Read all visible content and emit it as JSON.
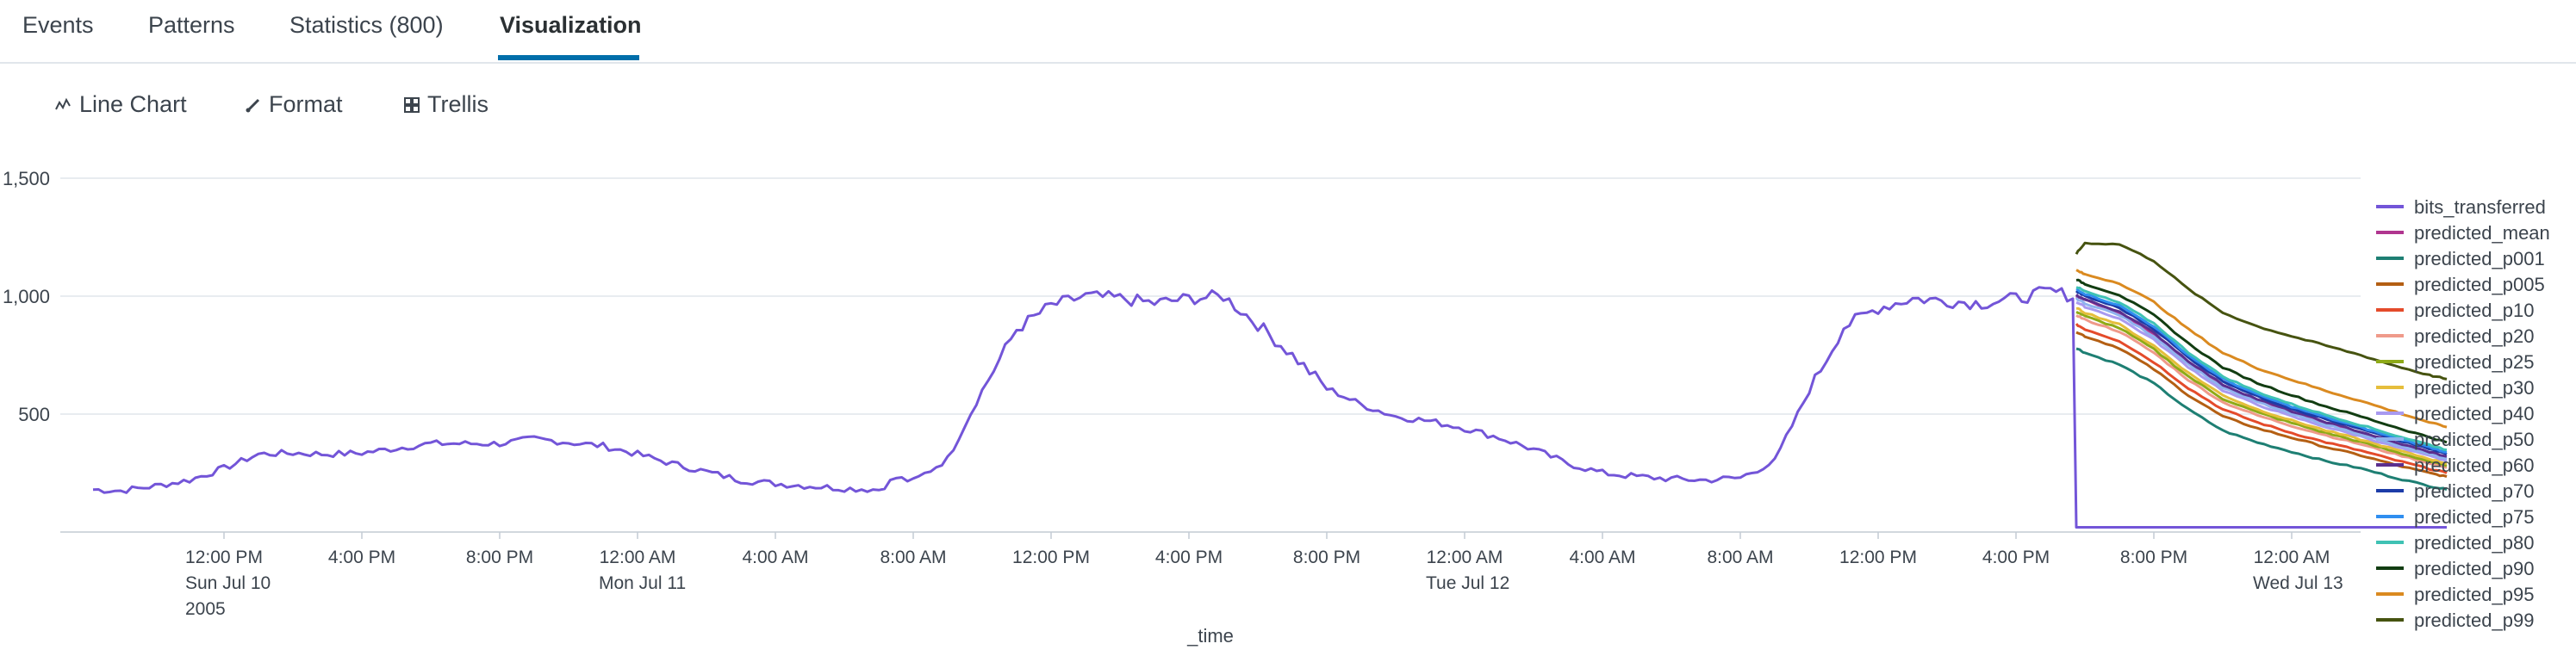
{
  "tabs": [
    {
      "label": "Events"
    },
    {
      "label": "Patterns"
    },
    {
      "label": "Statistics (800)"
    },
    {
      "label": "Visualization"
    }
  ],
  "toolbar": {
    "line_chart_label": "Line Chart",
    "format_label": "Format",
    "trellis_label": "Trellis"
  },
  "colors": {
    "active_tab": "#006eaa",
    "bits_transferred": "#7355d8",
    "predicted_mean": "#b0358f",
    "predicted_p001": "#1e7f73",
    "predicted_p005": "#b45f13",
    "predicted_p10": "#e44b2b",
    "predicted_p20": "#ef9a8a",
    "predicted_p25": "#8eaa17",
    "predicted_p30": "#e6be3c",
    "predicted_p40": "#a89af0",
    "predicted_p50": "#8fb3ee",
    "predicted_p60": "#5b2f8e",
    "predicted_p70": "#1c3ca8",
    "predicted_p75": "#2f8ef0",
    "predicted_p80": "#3fc2b4",
    "predicted_p90": "#123d12",
    "predicted_p95": "#da8a20",
    "predicted_p99": "#465310"
  },
  "chart_data": {
    "type": "line",
    "xlabel": "_time",
    "ylabel": "",
    "ylim": [
      0,
      1500
    ],
    "yticks": [
      "1,500",
      "1,000",
      "500"
    ],
    "xticks": [
      {
        "label": "12:00 PM",
        "sub": [
          "Sun Jul 10",
          "2005"
        ]
      },
      {
        "label": "4:00 PM",
        "sub": []
      },
      {
        "label": "8:00 PM",
        "sub": []
      },
      {
        "label": "12:00 AM",
        "sub": [
          "Mon Jul 11"
        ]
      },
      {
        "label": "4:00 AM",
        "sub": []
      },
      {
        "label": "8:00 AM",
        "sub": []
      },
      {
        "label": "12:00 PM",
        "sub": []
      },
      {
        "label": "4:00 PM",
        "sub": []
      },
      {
        "label": "8:00 PM",
        "sub": []
      },
      {
        "label": "12:00 AM",
        "sub": [
          "Tue Jul 12"
        ]
      },
      {
        "label": "4:00 AM",
        "sub": []
      },
      {
        "label": "8:00 AM",
        "sub": []
      },
      {
        "label": "12:00 PM",
        "sub": []
      },
      {
        "label": "4:00 PM",
        "sub": []
      },
      {
        "label": "8:00 PM",
        "sub": []
      },
      {
        "label": "12:00 AM",
        "sub": [
          "Wed Jul 13"
        ]
      }
    ],
    "x_range_hours": [
      -3.8,
      64.5
    ],
    "grid": true,
    "legend_position": "right",
    "series": [
      {
        "name": "bits_transferred",
        "color_key": "bits_transferred",
        "points": [
          [
            -3.8,
            180
          ],
          [
            -3,
            175
          ],
          [
            -2,
            195
          ],
          [
            -1,
            220
          ],
          [
            0,
            270
          ],
          [
            1,
            330
          ],
          [
            2,
            335
          ],
          [
            3,
            330
          ],
          [
            4,
            335
          ],
          [
            6,
            375
          ],
          [
            8,
            375
          ],
          [
            9,
            395
          ],
          [
            10,
            380
          ],
          [
            11,
            365
          ],
          [
            12,
            330
          ],
          [
            13,
            290
          ],
          [
            14,
            255
          ],
          [
            15,
            220
          ],
          [
            16,
            205
          ],
          [
            17,
            195
          ],
          [
            18,
            185
          ],
          [
            19,
            180
          ],
          [
            19.5,
            230
          ],
          [
            20,
            215
          ],
          [
            21,
            310
          ],
          [
            22,
            600
          ],
          [
            23,
            860
          ],
          [
            24,
            960
          ],
          [
            25,
            1000
          ],
          [
            26,
            990
          ],
          [
            27,
            970
          ],
          [
            28,
            990
          ],
          [
            29,
            1000
          ],
          [
            30,
            880
          ],
          [
            31,
            750
          ],
          [
            32,
            610
          ],
          [
            33,
            540
          ],
          [
            34,
            490
          ],
          [
            35,
            470
          ],
          [
            36,
            440
          ],
          [
            37,
            400
          ],
          [
            38,
            350
          ],
          [
            39,
            290
          ],
          [
            40,
            250
          ],
          [
            41,
            235
          ],
          [
            42,
            225
          ],
          [
            43,
            220
          ],
          [
            44,
            230
          ],
          [
            45,
            300
          ],
          [
            46,
            600
          ],
          [
            47,
            870
          ],
          [
            48,
            950
          ],
          [
            49,
            990
          ],
          [
            50,
            980
          ],
          [
            51,
            970
          ],
          [
            52,
            990
          ],
          [
            53,
            1020
          ],
          [
            53.65,
            1000
          ],
          [
            53.75,
            20
          ],
          [
            64.5,
            20
          ]
        ]
      },
      {
        "name": "predicted_mean",
        "color_key": "predicted_mean",
        "points": [
          [
            53.75,
            1000
          ],
          [
            54,
            985
          ],
          [
            55,
            930
          ],
          [
            56,
            840
          ],
          [
            57,
            720
          ],
          [
            58,
            620
          ],
          [
            59,
            560
          ],
          [
            60,
            510
          ],
          [
            61,
            460
          ],
          [
            62,
            420
          ],
          [
            63,
            370
          ],
          [
            64,
            330
          ],
          [
            64.5,
            310
          ]
        ]
      },
      {
        "name": "predicted_p001",
        "color_key": "predicted_p001",
        "points": [
          [
            53.75,
            780
          ],
          [
            54,
            760
          ],
          [
            55,
            710
          ],
          [
            56,
            630
          ],
          [
            57,
            520
          ],
          [
            58,
            430
          ],
          [
            59,
            380
          ],
          [
            60,
            340
          ],
          [
            61,
            300
          ],
          [
            62,
            270
          ],
          [
            63,
            230
          ],
          [
            64,
            195
          ],
          [
            64.5,
            180
          ]
        ]
      },
      {
        "name": "predicted_p005",
        "color_key": "predicted_p005",
        "points": [
          [
            53.75,
            850
          ],
          [
            54,
            830
          ],
          [
            55,
            780
          ],
          [
            56,
            690
          ],
          [
            57,
            580
          ],
          [
            58,
            490
          ],
          [
            59,
            440
          ],
          [
            60,
            400
          ],
          [
            61,
            360
          ],
          [
            62,
            325
          ],
          [
            63,
            285
          ],
          [
            64,
            250
          ],
          [
            64.5,
            235
          ]
        ]
      },
      {
        "name": "predicted_p10",
        "color_key": "predicted_p10",
        "points": [
          [
            53.75,
            880
          ],
          [
            54,
            860
          ],
          [
            55,
            810
          ],
          [
            56,
            720
          ],
          [
            57,
            610
          ],
          [
            58,
            520
          ],
          [
            59,
            465
          ],
          [
            60,
            420
          ],
          [
            61,
            380
          ],
          [
            62,
            345
          ],
          [
            63,
            305
          ],
          [
            64,
            268
          ],
          [
            64.5,
            250
          ]
        ]
      },
      {
        "name": "predicted_p20",
        "color_key": "predicted_p20",
        "points": [
          [
            53.75,
            920
          ],
          [
            54,
            900
          ],
          [
            55,
            850
          ],
          [
            56,
            760
          ],
          [
            57,
            645
          ],
          [
            58,
            550
          ],
          [
            59,
            495
          ],
          [
            60,
            450
          ],
          [
            61,
            410
          ],
          [
            62,
            372
          ],
          [
            63,
            330
          ],
          [
            64,
            292
          ],
          [
            64.5,
            272
          ]
        ]
      },
      {
        "name": "predicted_p25",
        "color_key": "predicted_p25",
        "points": [
          [
            53.75,
            935
          ],
          [
            54,
            915
          ],
          [
            55,
            865
          ],
          [
            56,
            775
          ],
          [
            57,
            660
          ],
          [
            58,
            565
          ],
          [
            59,
            508
          ],
          [
            60,
            462
          ],
          [
            61,
            420
          ],
          [
            62,
            382
          ],
          [
            63,
            340
          ],
          [
            64,
            300
          ],
          [
            64.5,
            280
          ]
        ]
      },
      {
        "name": "predicted_p30",
        "color_key": "predicted_p30",
        "points": [
          [
            53.75,
            950
          ],
          [
            54,
            930
          ],
          [
            55,
            880
          ],
          [
            56,
            790
          ],
          [
            57,
            675
          ],
          [
            58,
            580
          ],
          [
            59,
            520
          ],
          [
            60,
            473
          ],
          [
            61,
            430
          ],
          [
            62,
            392
          ],
          [
            63,
            350
          ],
          [
            64,
            310
          ],
          [
            64.5,
            290
          ]
        ]
      },
      {
        "name": "predicted_p40",
        "color_key": "predicted_p40",
        "points": [
          [
            53.75,
            975
          ],
          [
            54,
            955
          ],
          [
            55,
            905
          ],
          [
            56,
            815
          ],
          [
            57,
            700
          ],
          [
            58,
            600
          ],
          [
            59,
            540
          ],
          [
            60,
            490
          ],
          [
            61,
            445
          ],
          [
            62,
            406
          ],
          [
            63,
            362
          ],
          [
            64,
            322
          ],
          [
            64.5,
            302
          ]
        ]
      },
      {
        "name": "predicted_p50",
        "color_key": "predicted_p50",
        "points": [
          [
            53.75,
            990
          ],
          [
            54,
            970
          ],
          [
            55,
            920
          ],
          [
            56,
            830
          ],
          [
            57,
            712
          ],
          [
            58,
            612
          ],
          [
            59,
            552
          ],
          [
            60,
            500
          ],
          [
            61,
            455
          ],
          [
            62,
            415
          ],
          [
            63,
            370
          ],
          [
            64,
            330
          ],
          [
            64.5,
            310
          ]
        ]
      },
      {
        "name": "predicted_p60",
        "color_key": "predicted_p60",
        "points": [
          [
            53.75,
            1005
          ],
          [
            54,
            985
          ],
          [
            55,
            935
          ],
          [
            56,
            845
          ],
          [
            57,
            725
          ],
          [
            58,
            625
          ],
          [
            59,
            563
          ],
          [
            60,
            512
          ],
          [
            61,
            466
          ],
          [
            62,
            425
          ],
          [
            63,
            380
          ],
          [
            64,
            340
          ],
          [
            64.5,
            320
          ]
        ]
      },
      {
        "name": "predicted_p70",
        "color_key": "predicted_p70",
        "points": [
          [
            53.75,
            1020
          ],
          [
            54,
            1000
          ],
          [
            55,
            950
          ],
          [
            56,
            862
          ],
          [
            57,
            740
          ],
          [
            58,
            640
          ],
          [
            59,
            575
          ],
          [
            60,
            524
          ],
          [
            61,
            478
          ],
          [
            62,
            436
          ],
          [
            63,
            392
          ],
          [
            64,
            352
          ],
          [
            64.5,
            330
          ]
        ]
      },
      {
        "name": "predicted_p75",
        "color_key": "predicted_p75",
        "points": [
          [
            53.75,
            1030
          ],
          [
            54,
            1010
          ],
          [
            55,
            960
          ],
          [
            56,
            872
          ],
          [
            57,
            750
          ],
          [
            58,
            650
          ],
          [
            59,
            583
          ],
          [
            60,
            532
          ],
          [
            61,
            486
          ],
          [
            62,
            444
          ],
          [
            63,
            400
          ],
          [
            64,
            360
          ],
          [
            64.5,
            338
          ]
        ]
      },
      {
        "name": "predicted_p80",
        "color_key": "predicted_p80",
        "points": [
          [
            53.75,
            1040
          ],
          [
            54,
            1020
          ],
          [
            55,
            972
          ],
          [
            56,
            885
          ],
          [
            57,
            762
          ],
          [
            58,
            660
          ],
          [
            59,
            594
          ],
          [
            60,
            542
          ],
          [
            61,
            496
          ],
          [
            62,
            454
          ],
          [
            63,
            410
          ],
          [
            64,
            370
          ],
          [
            64.5,
            348
          ]
        ]
      },
      {
        "name": "predicted_p90",
        "color_key": "predicted_p90",
        "points": [
          [
            53.75,
            1070
          ],
          [
            54,
            1052
          ],
          [
            55,
            1005
          ],
          [
            56,
            920
          ],
          [
            57,
            800
          ],
          [
            58,
            698
          ],
          [
            59,
            632
          ],
          [
            60,
            580
          ],
          [
            61,
            532
          ],
          [
            62,
            490
          ],
          [
            63,
            445
          ],
          [
            64,
            402
          ],
          [
            64.5,
            380
          ]
        ]
      },
      {
        "name": "predicted_p95",
        "color_key": "predicted_p95",
        "points": [
          [
            53.75,
            1110
          ],
          [
            54,
            1092
          ],
          [
            55,
            1055
          ],
          [
            56,
            975
          ],
          [
            57,
            860
          ],
          [
            58,
            760
          ],
          [
            59,
            695
          ],
          [
            60,
            645
          ],
          [
            61,
            598
          ],
          [
            62,
            556
          ],
          [
            63,
            510
          ],
          [
            64,
            465
          ],
          [
            64.5,
            445
          ]
        ]
      },
      {
        "name": "predicted_p99",
        "color_key": "predicted_p99",
        "points": [
          [
            53.75,
            1180
          ],
          [
            54,
            1225
          ],
          [
            55,
            1220
          ],
          [
            56,
            1150
          ],
          [
            57,
            1030
          ],
          [
            58,
            930
          ],
          [
            59,
            872
          ],
          [
            60,
            830
          ],
          [
            61,
            790
          ],
          [
            62,
            750
          ],
          [
            63,
            705
          ],
          [
            64,
            665
          ],
          [
            64.5,
            648
          ]
        ]
      }
    ]
  }
}
